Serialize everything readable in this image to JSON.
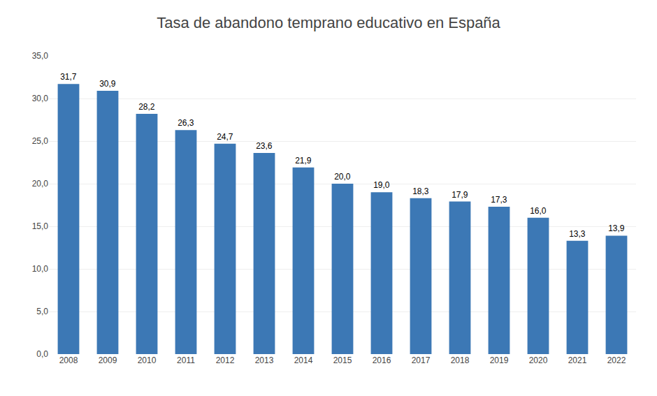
{
  "chart_data": {
    "type": "bar",
    "title": "Tasa de abandono temprano educativo en España",
    "categories": [
      "2008",
      "2009",
      "2010",
      "2011",
      "2012",
      "2013",
      "2014",
      "2015",
      "2016",
      "2017",
      "2018",
      "2019",
      "2020",
      "2021",
      "2022"
    ],
    "values": [
      31.7,
      30.9,
      28.2,
      26.3,
      24.7,
      23.6,
      21.9,
      20.0,
      19.0,
      18.3,
      17.9,
      17.3,
      16.0,
      13.3,
      13.9
    ],
    "value_labels": [
      "31,7",
      "30,9",
      "28,2",
      "26,3",
      "24,7",
      "23,6",
      "21,9",
      "20,0",
      "19,0",
      "18,3",
      "17,9",
      "17,3",
      "16,0",
      "13,3",
      "13,9"
    ],
    "data_labels": true,
    "color": "#3C78B5",
    "ylim": [
      0,
      35
    ],
    "yticks": [
      {
        "value": 0,
        "label": "0,0"
      },
      {
        "value": 5,
        "label": "5,0"
      },
      {
        "value": 10,
        "label": "10,0"
      },
      {
        "value": 15,
        "label": "15,0"
      },
      {
        "value": 20,
        "label": "20,0"
      },
      {
        "value": 25,
        "label": "25,0"
      },
      {
        "value": 30,
        "label": "30,0"
      },
      {
        "value": 35,
        "label": "35,0"
      }
    ],
    "grid": true
  }
}
